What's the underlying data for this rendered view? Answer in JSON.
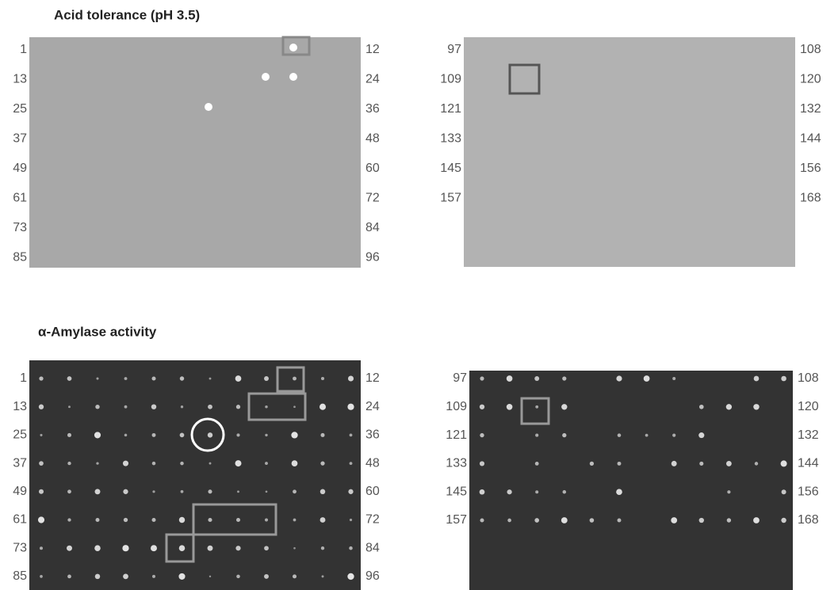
{
  "panels": [
    {
      "title": "Acid tolerance (pH 3.5)",
      "plates": [
        {
          "left_labels": [
            "1",
            "13",
            "25",
            "37",
            "49",
            "61",
            "73",
            "85"
          ],
          "right_labels": [
            "12",
            "24",
            "36",
            "48",
            "60",
            "72",
            "84",
            "96"
          ]
        },
        {
          "left_labels": [
            "97",
            "109",
            "121",
            "133",
            "145",
            "157"
          ],
          "right_labels": [
            "108",
            "120",
            "132",
            "144",
            "156",
            "168"
          ]
        }
      ]
    },
    {
      "title": "α-Amylase activity",
      "plates": [
        {
          "left_labels": [
            "1",
            "13",
            "25",
            "37",
            "49",
            "61",
            "73",
            "85"
          ],
          "right_labels": [
            "12",
            "24",
            "36",
            "48",
            "60",
            "72",
            "84",
            "96"
          ]
        },
        {
          "left_labels": [
            "97",
            "109",
            "121",
            "133",
            "145",
            "157"
          ],
          "right_labels": [
            "108",
            "120",
            "132",
            "144",
            "156",
            "168"
          ]
        }
      ]
    }
  ]
}
